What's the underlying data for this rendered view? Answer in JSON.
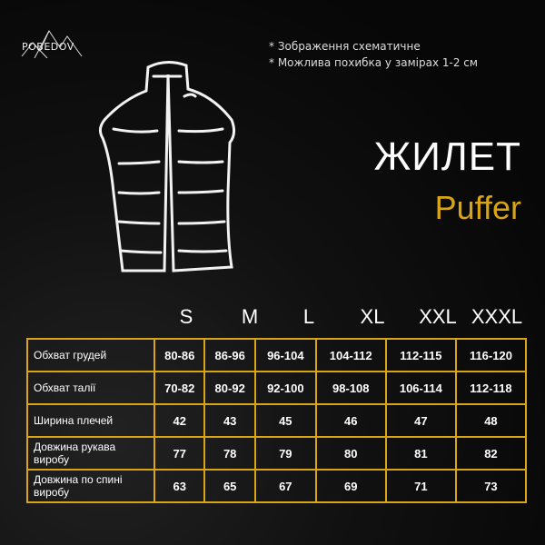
{
  "brand": {
    "logo_text": "POBEDOV"
  },
  "notes": [
    "* Зображення схематичне",
    "* Можлива похибка у замірах 1-2 см"
  ],
  "title": "ЖИЛЕТ",
  "subtitle": "Puffer",
  "colors": {
    "accent": "#d9a514",
    "background": "#0b0b0b"
  },
  "table": {
    "sizes": [
      "S",
      "M",
      "L",
      "XL",
      "XXL",
      "XXXL"
    ],
    "rows": [
      {
        "label": "Обхват грудей",
        "values": [
          "80-86",
          "86-96",
          "96-104",
          "104-112",
          "112-115",
          "116-120"
        ]
      },
      {
        "label": "Обхват талії",
        "values": [
          "70-82",
          "80-92",
          "92-100",
          "98-108",
          "106-114",
          "112-118"
        ]
      },
      {
        "label": "Ширина плечей",
        "values": [
          "42",
          "43",
          "45",
          "46",
          "47",
          "48"
        ]
      },
      {
        "label": "Довжина рукава виробу",
        "values": [
          "77",
          "78",
          "79",
          "80",
          "81",
          "82"
        ]
      },
      {
        "label": "Довжина по спині виробу",
        "values": [
          "63",
          "65",
          "67",
          "69",
          "71",
          "73"
        ]
      }
    ]
  }
}
